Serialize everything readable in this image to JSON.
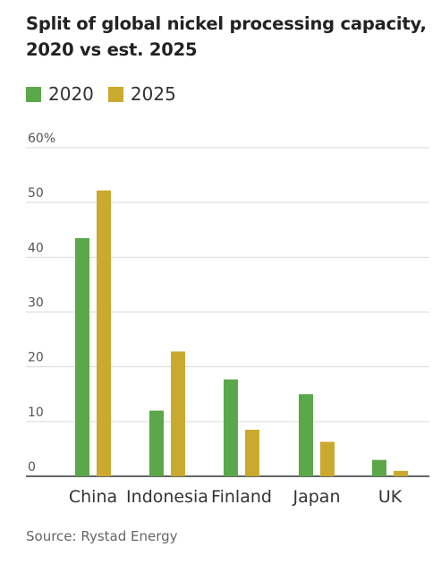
{
  "title": "Split of global nickel processing capacity, 2020 vs est. 2025",
  "source": "Source: Rystad Energy",
  "colors": {
    "2020": "#5aa84a",
    "2025": "#c9aa2e",
    "grid": "#d9d9d9",
    "axis": "#333333"
  },
  "chart_data": {
    "type": "bar",
    "categories": [
      "China",
      "Indonesia",
      "Finland",
      "Japan",
      "UK"
    ],
    "series": [
      {
        "name": "2020",
        "values": [
          43.5,
          12,
          17.7,
          15,
          3
        ]
      },
      {
        "name": "2025",
        "values": [
          52.2,
          22.8,
          8.5,
          6.3,
          1
        ]
      }
    ],
    "y_ticks": [
      "0",
      "10",
      "20",
      "30",
      "40",
      "50",
      "60%"
    ],
    "ylim": [
      0,
      60
    ],
    "grid": true,
    "legend": "top-left"
  }
}
